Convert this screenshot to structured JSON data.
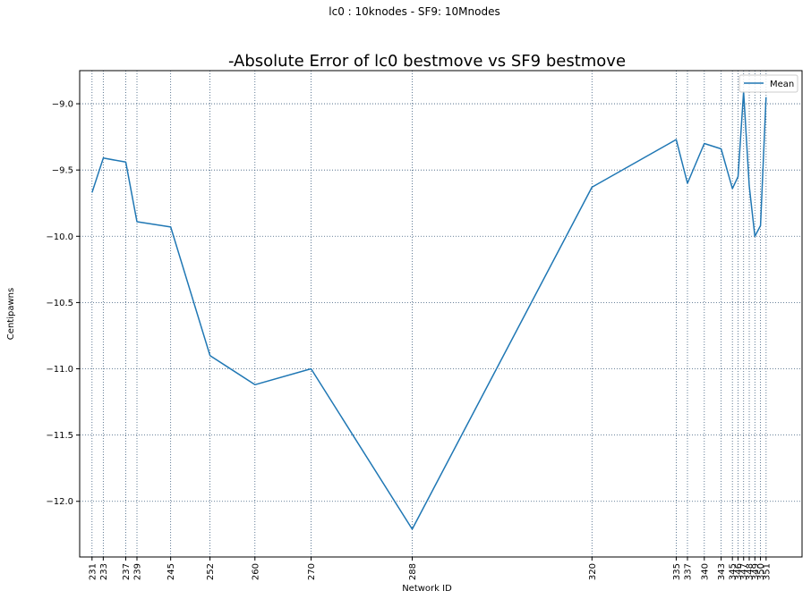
{
  "chart_data": {
    "type": "line",
    "suptitle": "lc0 : 10knodes - SF9: 10Mnodes",
    "title": "-Absolute Error of lc0 bestmove vs SF9 bestmove",
    "xlabel": "Network ID",
    "ylabel": "Centipawns",
    "x": [
      231,
      233,
      237,
      239,
      245,
      252,
      260,
      270,
      288,
      320,
      335,
      337,
      340,
      343,
      345,
      346,
      347,
      348,
      349,
      350,
      351
    ],
    "series": [
      {
        "name": "Mean",
        "color": "#1f77b4",
        "values": [
          -9.67,
          -9.41,
          -9.44,
          -9.89,
          -9.93,
          -10.9,
          -11.12,
          -11.0,
          -12.21,
          -9.63,
          -9.27,
          -9.6,
          -9.3,
          -9.34,
          -9.64,
          -9.55,
          -8.91,
          -9.62,
          -10.0,
          -9.92,
          -8.95
        ]
      }
    ],
    "xlim": [
      228.8,
      357.4
    ],
    "ylim": [
      -12.42,
      -8.75
    ],
    "yticks": [
      -9.0,
      -9.5,
      -10.0,
      -10.5,
      -11.0,
      -11.5,
      -12.0
    ],
    "ytick_labels": [
      "−9.0",
      "−9.5",
      "−10.0",
      "−10.5",
      "−11.0",
      "−11.5",
      "−12.0"
    ],
    "xtick_labels": [
      "231",
      "233",
      "237",
      "239",
      "245",
      "252",
      "260",
      "270",
      "288",
      "320",
      "335",
      "337",
      "340",
      "343",
      "345",
      "346",
      "347",
      "348",
      "349",
      "350",
      "351"
    ],
    "grid": true,
    "grid_color": "#3a5a7a",
    "legend_placement": "top-right"
  }
}
